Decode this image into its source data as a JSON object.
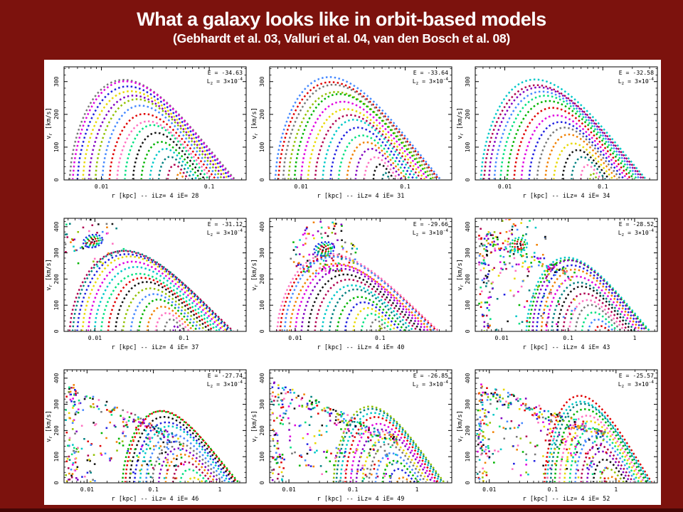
{
  "slide": {
    "title": "What a galaxy looks like in orbit-based models",
    "subtitle": "(Gebhardt et al. 03, Valluri et al. 04, van den Bosch et al. 08)",
    "colors": {
      "background": "#7c120d",
      "bottom_stripe": "#450705",
      "panel_background": "#ffffff",
      "title_text": "#ffffff",
      "plot_text": "#000000"
    }
  },
  "chart_data": {
    "type": "scatter",
    "x_scale": "log",
    "ylabel": {
      "base": "v",
      "sub": "r",
      "rest": " [km/s]"
    },
    "lz_annotation": {
      "base": "L",
      "sub": "z",
      "mid": " = 3×10",
      "sup": "-4"
    },
    "palette": [
      "#00b400",
      "#e00000",
      "#2020e0",
      "#00c8c8",
      "#e000e0",
      "#e8d800",
      "#f08000",
      "#787878",
      "#101010",
      "#8000c0",
      "#00e080",
      "#4488ff",
      "#b00050",
      "#90c000",
      "#ff70c0",
      "#008080"
    ],
    "island_palette": [
      "#101010",
      "#e00000",
      "#00b400",
      "#00c8c8",
      "#2020e0"
    ],
    "panels": [
      {
        "e_label": "E = -34.63",
        "xlabel": "r [kpc] -- iLz=  4 iE= 28",
        "xticks": [
          {
            "v": 0.01,
            "t": "0.01"
          },
          {
            "v": 0.1,
            "t": "0.1"
          }
        ],
        "yticks": [
          0,
          100,
          200,
          300
        ],
        "xlim": [
          0.0045,
          0.22
        ],
        "ymax_frame": 345,
        "pattern": "regular",
        "n_arcs": 16,
        "vmax": 312,
        "arc_zone": [
          0.03,
          0.62,
          0.94,
          0.66
        ],
        "seed": 1
      },
      {
        "e_label": "E = -33.64",
        "xlabel": "r [kpc] -- iLz=  4 iE= 31",
        "xticks": [
          {
            "v": 0.01,
            "t": "0.01"
          },
          {
            "v": 0.1,
            "t": "0.1"
          }
        ],
        "yticks": [
          0,
          100,
          200,
          300
        ],
        "xlim": [
          0.005,
          0.28
        ],
        "ymax_frame": 345,
        "pattern": "regular",
        "n_arcs": 16,
        "vmax": 308,
        "arc_zone": [
          0.03,
          0.62,
          0.94,
          0.66
        ],
        "seed": 2
      },
      {
        "e_label": "E = -32.58",
        "xlabel": "r [kpc] -- iLz=  4 iE= 34",
        "xticks": [
          {
            "v": 0.01,
            "t": "0.01"
          },
          {
            "v": 0.1,
            "t": "0.1"
          }
        ],
        "yticks": [
          0,
          100,
          200,
          300
        ],
        "xlim": [
          0.005,
          0.36
        ],
        "ymax_frame": 345,
        "pattern": "regular",
        "n_arcs": 16,
        "vmax": 302,
        "arc_zone": [
          0.03,
          0.63,
          0.94,
          0.67
        ],
        "seed": 3
      },
      {
        "e_label": "E = -31.12",
        "xlabel": "r [kpc] -- iLz=  4 iE= 37",
        "xticks": [
          {
            "v": 0.01,
            "t": "0.01"
          },
          {
            "v": 0.1,
            "t": "0.1"
          }
        ],
        "yticks": [
          0,
          100,
          200,
          300,
          400
        ],
        "xlim": [
          0.0045,
          0.5
        ],
        "ymax_frame": 432,
        "pattern": "island",
        "n_arcs": 16,
        "vmax": 315,
        "arc_zone": [
          0.03,
          0.6,
          0.93,
          0.64
        ],
        "seed": 4,
        "island": {
          "x": 0.0095,
          "v": 345,
          "rx": 0.11,
          "rv": 24,
          "rings": 5,
          "scatter": 55
        }
      },
      {
        "e_label": "E = -29.66",
        "xlabel": "r [kpc] -- iLz=  4 iE= 40",
        "xticks": [
          {
            "v": 0.01,
            "t": "0.01"
          },
          {
            "v": 0.1,
            "t": "0.1"
          }
        ],
        "yticks": [
          0,
          100,
          200,
          300,
          400
        ],
        "xlim": [
          0.005,
          0.7
        ],
        "ymax_frame": 432,
        "pattern": "island",
        "n_arcs": 16,
        "vmax": 300,
        "arc_zone": [
          0.04,
          0.6,
          0.93,
          0.62
        ],
        "seed": 5,
        "island": {
          "x": 0.022,
          "v": 315,
          "rx": 0.12,
          "rv": 26,
          "rings": 5,
          "scatter": 110
        }
      },
      {
        "e_label": "E = -28.52",
        "xlabel": "r [kpc] -- iLz=  4 iE= 43",
        "xticks": [
          {
            "v": 0.01,
            "t": "0.01"
          },
          {
            "v": 0.1,
            "t": "0.1"
          },
          {
            "v": 1,
            "t": "1"
          }
        ],
        "yticks": [
          0,
          100,
          200,
          300,
          400
        ],
        "xlim": [
          0.004,
          2.2
        ],
        "ymax_frame": 432,
        "pattern": "mixed",
        "n_arcs": 14,
        "vmax": 290,
        "arc_zone": [
          0.28,
          0.66,
          0.96,
          0.74
        ],
        "seed": 6,
        "island": {
          "x": 0.018,
          "v": 330,
          "rx": 0.13,
          "rv": 28,
          "rings": 4,
          "scatter": 60
        },
        "scatter": {
          "n": 230,
          "xzone": [
            0.02,
            0.55
          ],
          "vtop": [
            400,
            230
          ]
        }
      },
      {
        "e_label": "E = -27.74",
        "xlabel": "r [kpc] -- iLz=  4 iE= 46",
        "xticks": [
          {
            "v": 0.01,
            "t": "0.01"
          },
          {
            "v": 0.1,
            "t": "0.1"
          },
          {
            "v": 1,
            "t": "1"
          }
        ],
        "yticks": [
          0,
          100,
          200,
          300,
          400
        ],
        "xlim": [
          0.0045,
          2.5
        ],
        "ymax_frame": 432,
        "pattern": "chaotic",
        "n_arcs": 12,
        "vmax": 280,
        "arc_zone": [
          0.32,
          0.68,
          0.96,
          0.77
        ],
        "seed": 7,
        "scatter": {
          "n": 300,
          "xzone": [
            0.01,
            0.66
          ],
          "vtop": [
            395,
            170
          ]
        }
      },
      {
        "e_label": "E = -26.85",
        "xlabel": "r [kpc] -- iLz=  4 iE= 49",
        "xticks": [
          {
            "v": 0.01,
            "t": "0.01"
          },
          {
            "v": 0.1,
            "t": "0.1"
          },
          {
            "v": 1,
            "t": "1"
          }
        ],
        "yticks": [
          0,
          100,
          200,
          300,
          400
        ],
        "xlim": [
          0.005,
          3.5
        ],
        "ymax_frame": 432,
        "pattern": "chaotic",
        "n_arcs": 12,
        "vmax": 300,
        "arc_zone": [
          0.35,
          0.7,
          0.96,
          0.78
        ],
        "seed": 8,
        "scatter": {
          "n": 340,
          "xzone": [
            0.01,
            0.7
          ],
          "vtop": [
            400,
            180
          ]
        }
      },
      {
        "e_label": "E = -25.57",
        "xlabel": "r [kpc] -- iLz=  4 iE= 52",
        "xticks": [
          {
            "v": 0.01,
            "t": "0.01"
          },
          {
            "v": 0.1,
            "t": "0.1"
          },
          {
            "v": 1,
            "t": "1"
          }
        ],
        "yticks": [
          0,
          100,
          200,
          300,
          400
        ],
        "xlim": [
          0.006,
          4.5
        ],
        "ymax_frame": 432,
        "pattern": "chaotic",
        "n_arcs": 13,
        "vmax": 330,
        "arc_zone": [
          0.38,
          0.72,
          0.97,
          0.8
        ],
        "seed": 9,
        "scatter": {
          "n": 380,
          "xzone": [
            0.01,
            0.72
          ],
          "vtop": [
            400,
            200
          ]
        }
      }
    ]
  }
}
